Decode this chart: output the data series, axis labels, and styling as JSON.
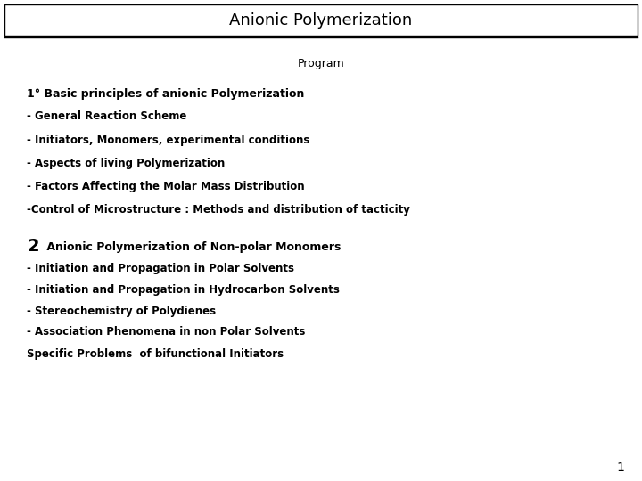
{
  "title": "Anionic Polymerization",
  "background_color": "#ffffff",
  "title_border_color": "#000000",
  "title_fontsize": 13,
  "program_label": "Program",
  "program_fontsize": 9,
  "section1_header": "1° Basic principles of anionic Polymerization",
  "section1_items": [
    "- General Reaction Scheme",
    "- Initiators, Monomers, experimental conditions",
    "- Aspects of living Polymerization",
    "- Factors Affecting the Molar Mass Distribution",
    "-Control of Microstructure : Methods and distribution of tacticity"
  ],
  "section2_header_num": "2",
  "section2_header_text": " Anionic Polymerization of Non-polar Monomers",
  "section2_items": [
    "- Initiation and Propagation in Polar Solvents",
    "- Initiation and Propagation in Hydrocarbon Solvents",
    "- Stereochemistry of Polydienes",
    "- Association Phenomena in non Polar Solvents",
    "Specific Problems  of bifunctional Initiators"
  ],
  "page_number": "1",
  "text_color": "#000000",
  "item_fontsize": 8.5,
  "header_fontsize": 9,
  "section2_num_fontsize": 14
}
